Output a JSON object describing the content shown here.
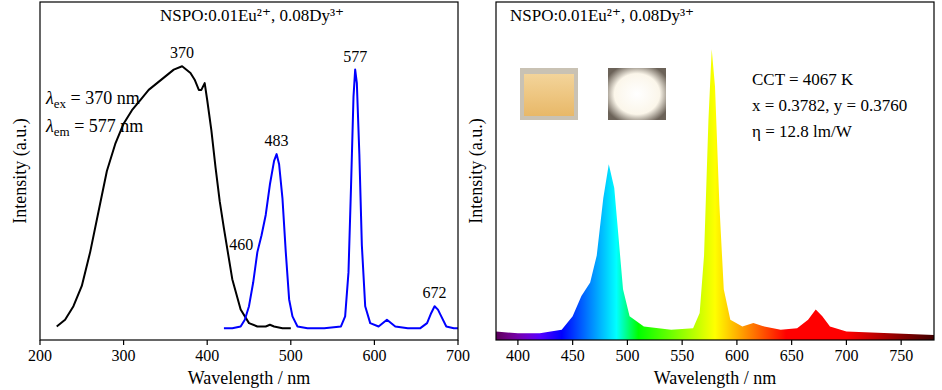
{
  "chart_data": [
    {
      "type": "line",
      "title": "NSPO:0.01Eu²⁺, 0.08Dy³⁺",
      "x_label": "Wavelength / nm",
      "y_label": "Intensity (a.u.)",
      "xlim": [
        200,
        700
      ],
      "ylim": [
        0,
        100
      ],
      "xticks": [
        200,
        300,
        400,
        500,
        600,
        700
      ],
      "tick_labels": "x",
      "series": [
        {
          "color": "#000000",
          "x": [
            220,
            230,
            240,
            250,
            260,
            270,
            280,
            290,
            300,
            310,
            320,
            330,
            340,
            350,
            360,
            370,
            380,
            385,
            390,
            393,
            397,
            400,
            405,
            410,
            415,
            420,
            430,
            440,
            450,
            460,
            470,
            475,
            480,
            490,
            500
          ],
          "values": [
            4,
            6,
            10,
            16,
            26,
            38,
            50,
            58,
            64,
            68,
            71,
            74,
            76,
            78,
            80,
            81,
            79,
            77,
            74,
            74,
            76,
            71,
            62,
            51,
            41,
            33,
            18,
            9,
            5,
            4,
            4,
            4.5,
            4,
            3.5,
            3.5
          ],
          "peaks": [
            370
          ]
        },
        {
          "color": "#0000ff",
          "x": [
            420,
            430,
            440,
            445,
            450,
            455,
            460,
            465,
            470,
            475,
            480,
            483,
            486,
            490,
            494,
            498,
            502,
            508,
            520,
            540,
            560,
            565,
            569,
            572,
            575,
            577,
            579,
            582,
            585,
            589,
            595,
            605,
            615,
            625,
            640,
            655,
            663,
            668,
            672,
            676,
            680,
            686,
            695,
            700
          ],
          "values": [
            3.5,
            3.5,
            4,
            6,
            10,
            17,
            26,
            31,
            37,
            46,
            53,
            55,
            52,
            42,
            26,
            12,
            7,
            4,
            3.5,
            3.5,
            4,
            7,
            20,
            45,
            72,
            80,
            76,
            55,
            28,
            10,
            5,
            4,
            6,
            4,
            3.5,
            3.5,
            5,
            8,
            10,
            9,
            7,
            4,
            3.5,
            3.5
          ],
          "peaks": [
            460,
            483,
            577,
            672
          ]
        }
      ],
      "annotations": [
        {
          "symbol": "λ",
          "subscript": "ex",
          "text": " = 370 nm"
        },
        {
          "symbol": "λ",
          "subscript": "em",
          "text": " = 577 nm"
        }
      ]
    },
    {
      "type": "area",
      "title": "NSPO:0.01Eu²⁺, 0.08Dy³⁺",
      "x_label": "Wavelength / nm",
      "y_label": "Intensity (a.u.)",
      "xlim": [
        380,
        780
      ],
      "ylim": [
        0,
        100
      ],
      "xticks": [
        400,
        450,
        500,
        550,
        600,
        650,
        700,
        750
      ],
      "tick_labels": "x",
      "series": [
        {
          "color": "spectral",
          "x": [
            380,
            400,
            420,
            440,
            450,
            458,
            466,
            472,
            478,
            483,
            488,
            492,
            496,
            502,
            515,
            540,
            560,
            566,
            570,
            574,
            577,
            580,
            584,
            588,
            594,
            605,
            615,
            625,
            640,
            655,
            665,
            672,
            678,
            685,
            700,
            740,
            780
          ],
          "values": [
            2.5,
            2,
            2,
            3,
            7,
            13,
            17,
            25,
            42,
            52,
            45,
            30,
            15,
            7,
            4,
            3,
            3.5,
            8,
            25,
            65,
            86,
            75,
            40,
            15,
            6,
            4,
            5,
            4,
            3,
            3.5,
            6,
            9,
            7,
            4,
            2.5,
            2,
            1.5
          ]
        }
      ],
      "annotations": [
        {
          "text": "CCT = 4067 K"
        },
        {
          "text": "x = 0.3782, y = 0.3760"
        },
        {
          "text": "η = 12.8 lm/W"
        }
      ]
    }
  ]
}
